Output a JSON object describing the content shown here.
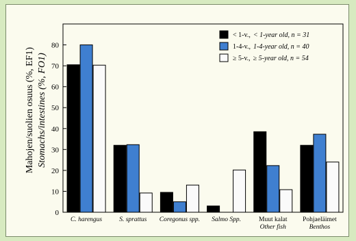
{
  "chart_data": {
    "type": "bar",
    "ylabel": "Mahojen/suolien osuus (%, EF1)",
    "ylabel_en": "Stomachs/intestines (%, FO1)",
    "ylim": [
      0,
      90
    ],
    "yticks": [
      0,
      10,
      20,
      30,
      40,
      50,
      60,
      70,
      80
    ],
    "grid": false,
    "legend_position": "top-right",
    "categories": [
      {
        "name": "C. harengus",
        "name_en": ""
      },
      {
        "name": "S. sprattus",
        "name_en": ""
      },
      {
        "name": "Coregonus spp.",
        "name_en": ""
      },
      {
        "name": "Salmo Spp.",
        "name_en": ""
      },
      {
        "name": "Muut kalat",
        "name_en": "Other fish"
      },
      {
        "name": "Pohjaeläimet",
        "name_en": "Benthos"
      }
    ],
    "series": [
      {
        "name": "< 1-v.,",
        "name_en": "< 1-year old, n = 31",
        "color": "#000000",
        "values": [
          70.5,
          32,
          9.5,
          3,
          38.5,
          32
        ]
      },
      {
        "name": "1-4-v.,",
        "name_en": "1-4-year old, n = 40",
        "color": "#3f7fd0",
        "values": [
          80,
          32.3,
          5,
          0,
          22.3,
          37.3
        ]
      },
      {
        "name": "≥ 5-v.,",
        "name_en": "≥ 5-year old, n = 54",
        "color": "#fafafa",
        "values": [
          70.3,
          9.2,
          13,
          20.2,
          10.8,
          24
        ]
      }
    ]
  }
}
